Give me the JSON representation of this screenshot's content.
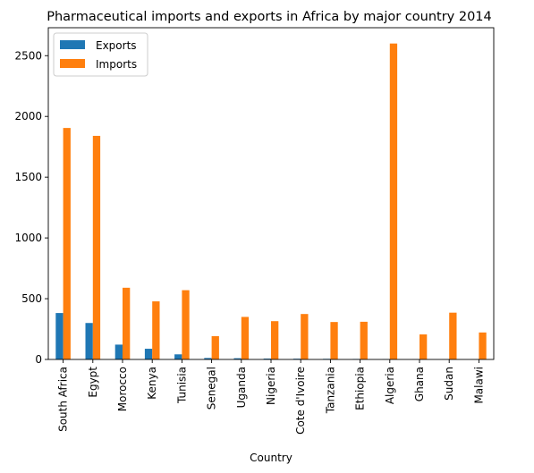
{
  "chart_data": {
    "type": "bar",
    "title": "Pharmaceutical imports and exports in Africa by major country 2014",
    "xlabel": "Country",
    "ylabel": "",
    "categories": [
      "South Africa",
      "Egypt",
      "Morocco",
      "Kenya",
      "Tunisia",
      "Senegal",
      "Uganda",
      "Nigeria",
      "Cote d'Ivoire",
      "Tanzania",
      "Ethiopia",
      "Algeria",
      "Ghana",
      "Sudan",
      "Malawi"
    ],
    "series": [
      {
        "name": "Exports",
        "color": "#1f77b4",
        "values": [
          382,
          300,
          122,
          88,
          42,
          12,
          10,
          7,
          6,
          5,
          4,
          3,
          2,
          1,
          1
        ]
      },
      {
        "name": "Imports",
        "color": "#ff7f0e",
        "values": [
          1905,
          1840,
          590,
          478,
          570,
          192,
          350,
          315,
          374,
          308,
          310,
          2600,
          206,
          385,
          222
        ]
      }
    ],
    "ylim": [
      0,
      2730
    ],
    "yticks": [
      0,
      500,
      1000,
      1500,
      2000,
      2500
    ],
    "grid": false,
    "legend_position": "top-left"
  }
}
